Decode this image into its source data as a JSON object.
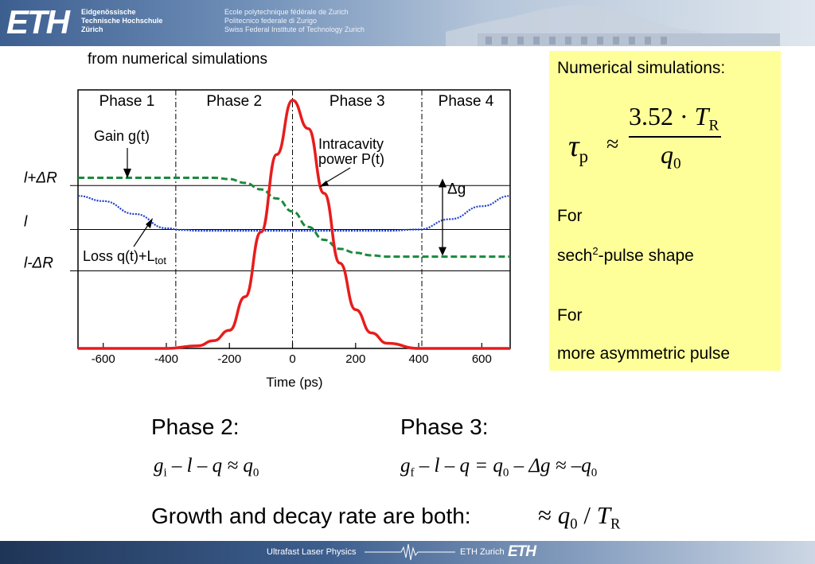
{
  "header": {
    "logo": "ETH",
    "institution_de": [
      "Eidgenössische",
      "Technische Hochschule",
      "Zürich"
    ],
    "institution_ml": [
      "Ecole polytechnique fédérale de Zurich",
      "Politecnico federale di Zurigo",
      "Swiss Federal Institute of Technology Zurich"
    ]
  },
  "caption": "from numerical simulations",
  "chart_data": {
    "type": "line",
    "xlabel": "Time (ps)",
    "xlim": [
      -680,
      690
    ],
    "xticks": [
      -600,
      -400,
      -200,
      0,
      200,
      400,
      600
    ],
    "xtick_labels": [
      "-600",
      "-400",
      "-200",
      "0",
      "200",
      "400",
      "600"
    ],
    "ylim": [
      0,
      1
    ],
    "phases": [
      {
        "label": "Phase 1",
        "boundary": -370
      },
      {
        "label": "Phase 2",
        "boundary": 0
      },
      {
        "label": "Phase 3",
        "boundary": 410
      },
      {
        "label": "Phase 4",
        "boundary": null
      }
    ],
    "levels": [
      {
        "label": "l+ΔR",
        "value": 0.63
      },
      {
        "label": "l",
        "value": 0.46
      },
      {
        "label": "l-ΔR",
        "value": 0.3
      }
    ],
    "annotations": {
      "gain": "Gain g(t)",
      "loss": "Loss q(t)+L",
      "loss_sub": "tot",
      "power_line1": "Intracavity",
      "power_line2": "power P(t)",
      "delta_g": "Δg"
    },
    "series": [
      {
        "name": "Gain g(t)",
        "color": "#1a8a3c",
        "style": "dashed",
        "x": [
          -680,
          -400,
          -250,
          -200,
          -150,
          -100,
          -50,
          0,
          50,
          100,
          150,
          200,
          250,
          300,
          690
        ],
        "y": [
          0.66,
          0.66,
          0.66,
          0.655,
          0.64,
          0.615,
          0.58,
          0.53,
          0.47,
          0.42,
          0.385,
          0.37,
          0.36,
          0.355,
          0.355
        ]
      },
      {
        "name": "Loss q(t)+Ltot",
        "color": "#1f3fc8",
        "style": "dotted",
        "x": [
          -680,
          -600,
          -500,
          -400,
          -350,
          -300,
          0,
          300,
          400,
          500,
          600,
          690
        ],
        "y": [
          0.59,
          0.57,
          0.52,
          0.465,
          0.458,
          0.455,
          0.455,
          0.455,
          0.46,
          0.5,
          0.55,
          0.59
        ]
      },
      {
        "name": "Intracavity power P(t)",
        "color": "#e81c1c",
        "style": "solid",
        "x": [
          -680,
          -400,
          -300,
          -250,
          -200,
          -150,
          -100,
          -50,
          0,
          50,
          100,
          150,
          200,
          250,
          300,
          400,
          690
        ],
        "y": [
          0.0,
          0.0,
          0.01,
          0.03,
          0.07,
          0.2,
          0.45,
          0.75,
          0.96,
          0.85,
          0.6,
          0.33,
          0.15,
          0.06,
          0.02,
          0.0,
          0.0
        ]
      }
    ]
  },
  "box": {
    "title": "Numerical simulations:",
    "formula": {
      "tau": "τ",
      "tau_sub": "p",
      "approx": "≈",
      "num_const": "3.52 · ",
      "num_var": "T",
      "num_sub": "R",
      "den_var": "q",
      "den_sub": "0"
    },
    "for1": "For",
    "shape1_pre": "sech",
    "shape1_sup": "2",
    "shape1_post": "-pulse shape",
    "for2": "For",
    "shape2": "more asymmetric pulse"
  },
  "phase2": {
    "title": "Phase 2:",
    "eq": {
      "g": "g",
      "g_sub": "i",
      "rest": " – l – q ≈ ",
      "q": "q",
      "q_sub": "0"
    }
  },
  "phase3": {
    "title": "Phase 3:",
    "eq": {
      "g": "g",
      "g_sub": "f",
      "rest": " – l – q = ",
      "q": "q",
      "q_sub": "0",
      "mid": " – Δg ≈ –",
      "q2": "q",
      "q2_sub": "0"
    }
  },
  "growth": {
    "text": "Growth and decay rate are both:",
    "eq": {
      "approx": "≈ ",
      "q": "q",
      "q_sub": "0",
      "slash": " / ",
      "t": "T",
      "t_sub": "R"
    }
  },
  "footer": {
    "course": "Ultrafast Laser Physics",
    "school": "ETH Zurich",
    "logo": "ETH"
  }
}
